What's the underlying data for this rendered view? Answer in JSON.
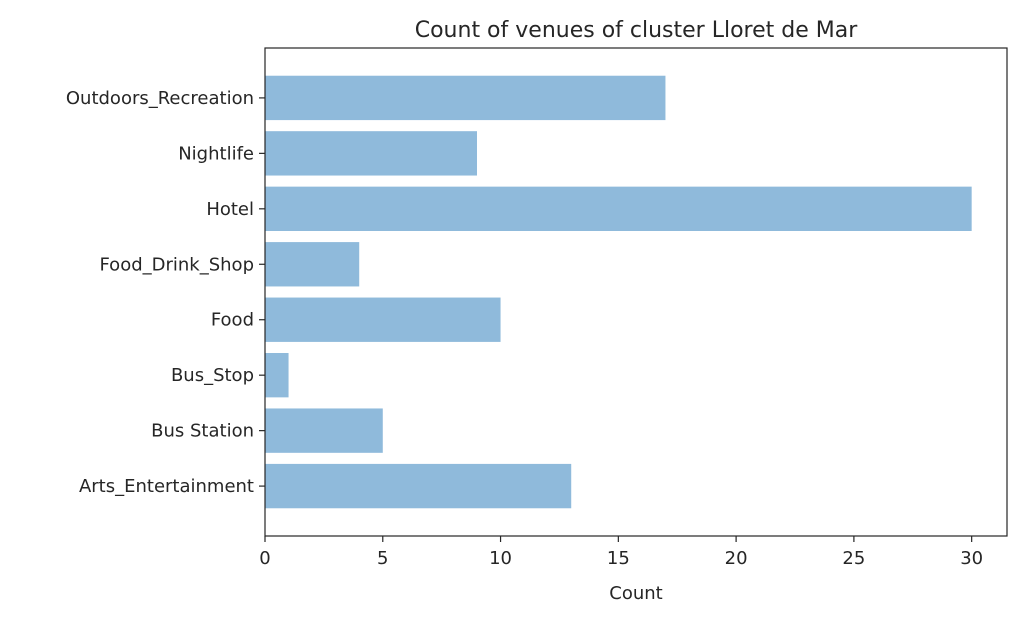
{
  "chart_data": {
    "type": "bar",
    "orientation": "horizontal",
    "title": "Count of venues of cluster Lloret de Mar",
    "xlabel": "Count",
    "ylabel": "",
    "categories": [
      "Arts_Entertainment",
      "Bus Station",
      "Bus_Stop",
      "Food",
      "Food_Drink_Shop",
      "Hotel",
      "Nightlife",
      "Outdoors_Recreation"
    ],
    "values": [
      13,
      5,
      1,
      10,
      4,
      30,
      9,
      17
    ],
    "xlim": [
      0,
      31.5
    ],
    "xticks": [
      0,
      5,
      10,
      15,
      20,
      25,
      30
    ],
    "grid": false,
    "legend": "none",
    "colors": {
      "bar": "#8fbadb",
      "axis": "#262626",
      "background": "#ffffff"
    }
  }
}
